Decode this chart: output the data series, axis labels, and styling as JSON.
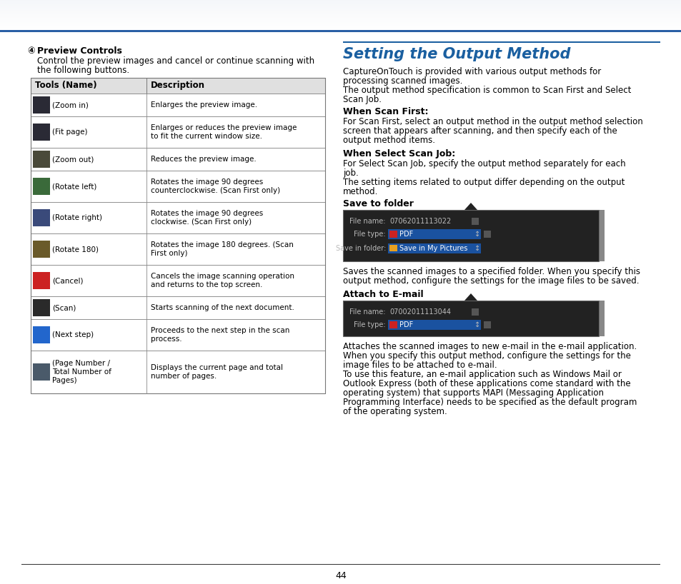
{
  "page_bg": "#ffffff",
  "top_bar_color": "#2a5fa5",
  "page_number": "44",
  "left_section": {
    "heading": "Preview Controls",
    "intro_line1": "Control the preview images and cancel or continue scanning with",
    "intro_line2": "the following buttons.",
    "table_header": [
      "Tools (Name)",
      "Description"
    ],
    "table_rows": [
      {
        "icon_label": "(Zoom in)",
        "description": "Enlarges the preview image.",
        "lines": 1
      },
      {
        "icon_label": "(Fit page)",
        "description": "Enlarges or reduces the preview image\nto fit the current window size.",
        "lines": 2
      },
      {
        "icon_label": "(Zoom out)",
        "description": "Reduces the preview image.",
        "lines": 1
      },
      {
        "icon_label": "(Rotate left)",
        "description": "Rotates the image 90 degrees\ncounterclockwise. (Scan First only)",
        "lines": 2
      },
      {
        "icon_label": "(Rotate right)",
        "description": "Rotates the image 90 degrees\nclockwise. (Scan First only)",
        "lines": 2
      },
      {
        "icon_label": "(Rotate 180)",
        "description": "Rotates the image 180 degrees. (Scan\nFirst only)",
        "lines": 2
      },
      {
        "icon_label": "(Cancel)",
        "description": "Cancels the image scanning operation\nand returns to the top screen.",
        "lines": 2
      },
      {
        "icon_label": "(Scan)",
        "description": "Starts scanning of the next document.",
        "lines": 1
      },
      {
        "icon_label": "(Next step)",
        "description": "Proceeds to the next step in the scan\nprocess.",
        "lines": 2
      },
      {
        "icon_label": "(Page Number /\nTotal Number of\nPages)",
        "description": "Displays the current page and total\nnumber of pages.",
        "lines": 3
      }
    ],
    "icon_colors": [
      "#2a2a35",
      "#2a2a35",
      "#4a4a3a",
      "#3a6a3a",
      "#3a4a7a",
      "#6a5a2a",
      "#cc2222",
      "#2a2a2a",
      "#2266cc",
      "#4a5a6a"
    ]
  },
  "right_section": {
    "title": "Setting the Output Method",
    "title_color": "#1a5fa0",
    "divider_color": "#1a5fa0",
    "intro": "CaptureOnTouch is provided with various output methods for\nprocessing scanned images.\nThe output method specification is common to Scan First and Select\nScan Job.",
    "when_scan_first_heading": "When Scan First:",
    "when_scan_first_body": "For Scan First, select an output method in the output method selection\nscreen that appears after scanning, and then specify each of the\noutput method items.",
    "when_ssj_heading": "When Select Scan Job:",
    "when_ssj_body": "For Select Scan Job, specify the output method separately for each\njob.\nThe setting items related to output differ depending on the output\nmethod.",
    "save_folder_heading": "Save to folder",
    "save_folder_desc": "Saves the scanned images to a specified folder. When you specify this\noutput method, configure the settings for the image files to be saved.",
    "attach_email_heading": "Attach to E-mail",
    "attach_email_desc": "Attaches the scanned images to new e-mail in the e-mail application.\nWhen you specify this output method, configure the settings for the\nimage files to be attached to e-mail.\nTo use this feature, an e-mail application such as Windows Mail or\nOutlook Express (both of these applications come standard with the\noperating system) that supports MAPI (Messaging Application\nProgramming Interface) needs to be specified as the default program\nof the operating system.",
    "ss_bg": "#222222",
    "ss_border": "#555555",
    "ss_text": "#bbbbbb",
    "ss_pdf_bg": "#1a52a0",
    "ss_pdf_icon": "#cc2222",
    "ss_folder_icon": "#e8a020",
    "ss_filename1": "07062011113022",
    "ss_filename2": "07002011113044"
  }
}
